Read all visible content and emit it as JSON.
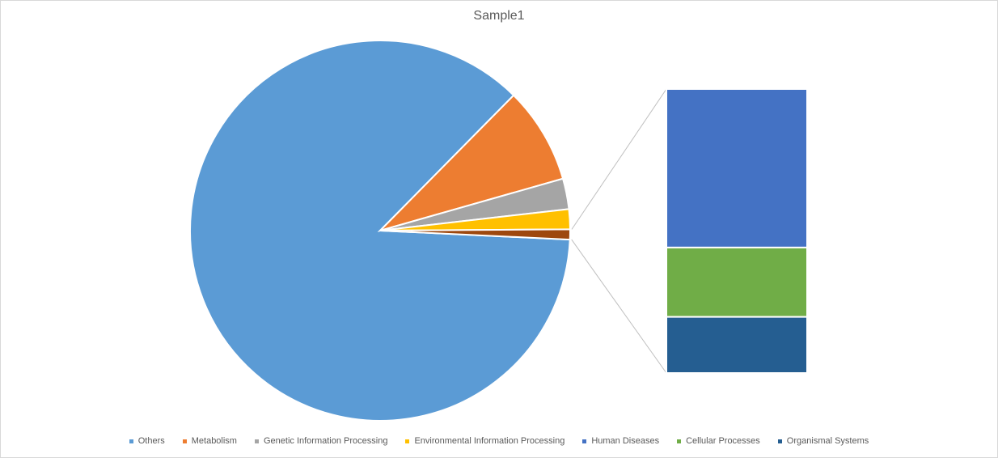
{
  "chart_data": {
    "type": "pie",
    "subtype": "bar-of-pie",
    "title": "Sample1",
    "legend_position": "bottom",
    "categories": [
      "Others",
      "Metabolism",
      "Genetic Information Processing",
      "Environmental Information Processing",
      "Human Diseases",
      "Cellular Processes",
      "Organismal Systems"
    ],
    "values": [
      86.7,
      8.2,
      2.6,
      1.7,
      0.48,
      0.21,
      0.17
    ],
    "colors": [
      "#5b9bd5",
      "#ed7d31",
      "#a5a5a5",
      "#ffc000",
      "#4472c4",
      "#70ad47",
      "#255e91"
    ],
    "other_slice_color": "#9e480e",
    "other_slice_members": [
      "Human Diseases",
      "Cellular Processes",
      "Organismal Systems"
    ]
  }
}
